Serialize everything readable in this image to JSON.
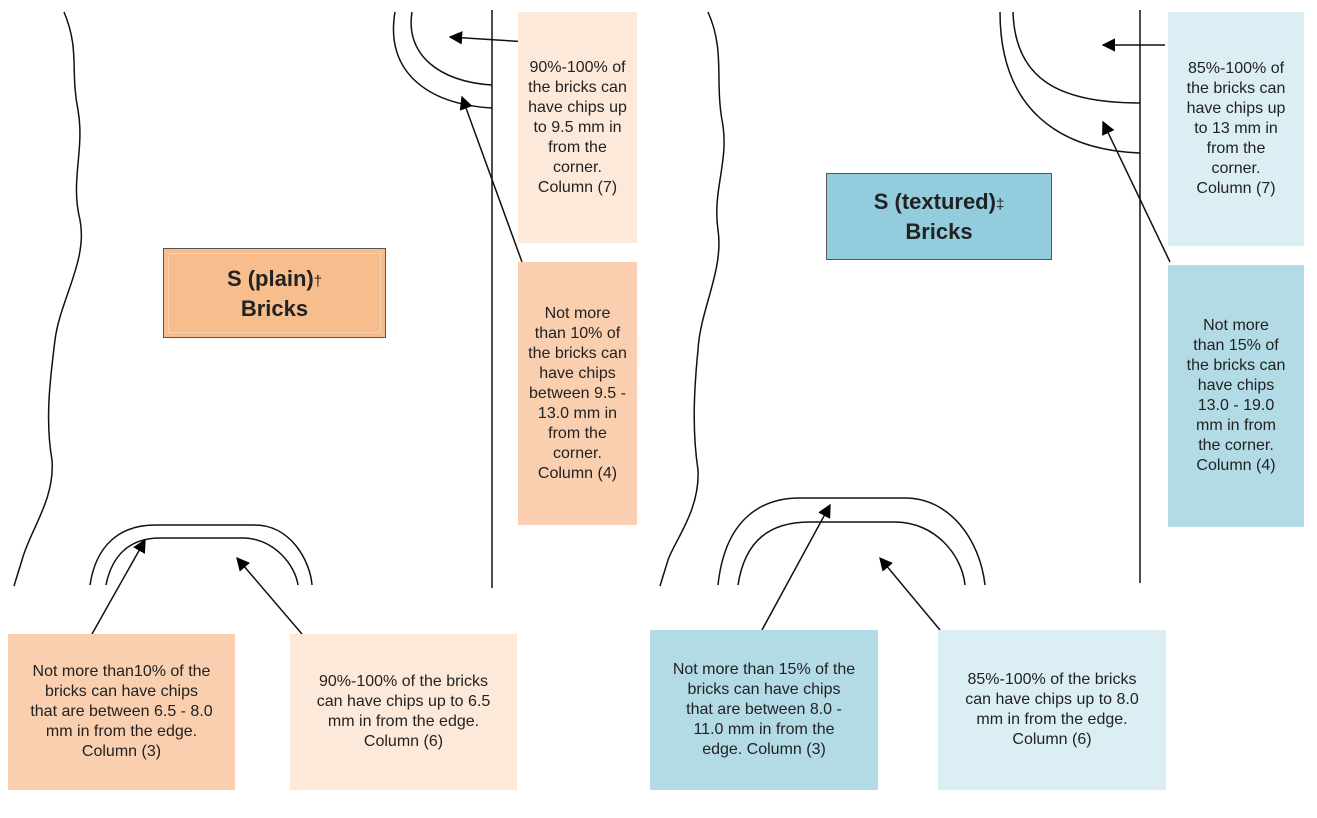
{
  "panels": [
    {
      "title": "S (plain)",
      "title_mark": "†",
      "title_line2": "Bricks",
      "corner_outer": "90%-100% of the bricks can have chips up to 9.5 mm in from the corner. Column (7)",
      "corner_inner": "Not more than 10% of the bricks can have chips between 9.5 - 13.0 mm in from the corner. Column (4)",
      "edge_inner": "Not more than10% of the bricks can have chips that are between 6.5 - 8.0 mm in from the edge. Column (3)",
      "edge_outer": "90%-100% of the bricks can have chips up to 6.5 mm in from the edge. Column (6)"
    },
    {
      "title": "S (textured)",
      "title_mark": "‡",
      "title_line2": "Bricks",
      "corner_outer": "85%-100% of the bricks can have chips up to 13 mm in from the corner. Column (7)",
      "corner_inner": "Not more than 15% of the bricks can have chips 13.0 - 19.0 mm in from the corner. Column (4)",
      "edge_inner": "Not more than 15% of the bricks can have chips that are between 8.0 - 11.0 mm in from the edge. Column (3)",
      "edge_outer": "85%-100% of the bricks can have chips up to 8.0 mm in from the edge. Column (6)"
    }
  ]
}
